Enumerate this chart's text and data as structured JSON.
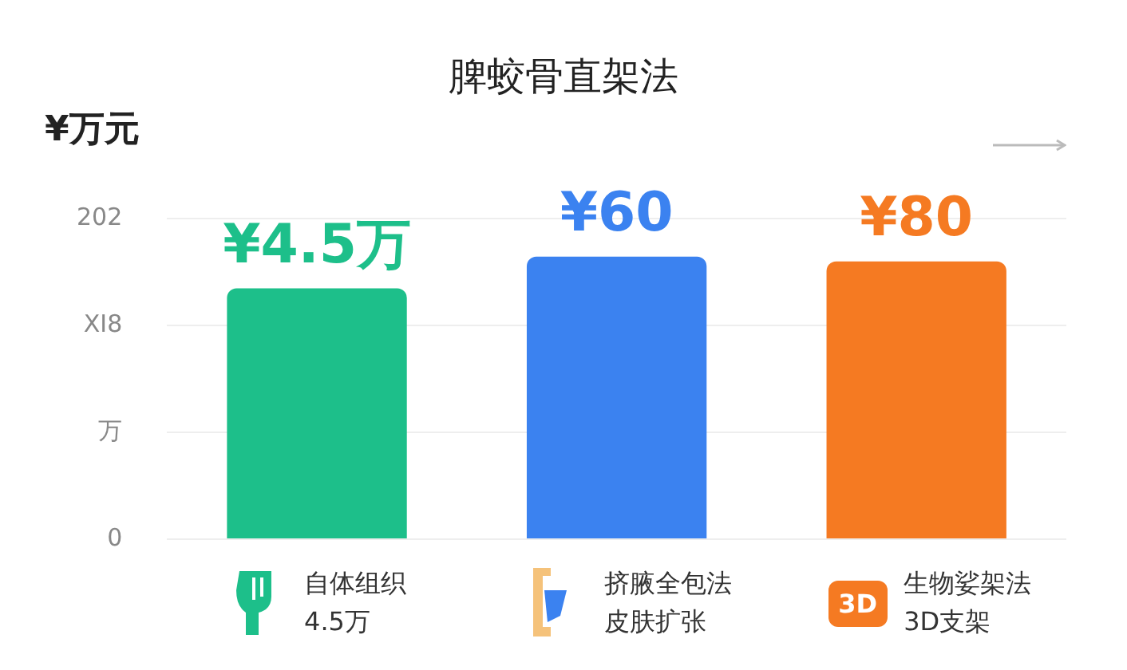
{
  "chart_data": {
    "type": "bar",
    "title": "脾蛟骨直架法",
    "ylabel": "¥万元",
    "categories": [
      "自体组织4.5万",
      "挤腋全包法皮肤扩张",
      "生物娑架法3D支架"
    ],
    "colors": [
      "#1dbf8a",
      "#3b82f0",
      "#f57a22"
    ],
    "values": [
      158,
      178,
      175
    ],
    "ylim": [
      0,
      202
    ],
    "yticks": [
      0,
      {
        "value": 67.3,
        "label": "万"
      },
      {
        "value": 134.7,
        "label": "XI8"
      },
      202
    ],
    "grid": "y",
    "legend": false,
    "annotations": [
      {
        "text": "¥4.5万",
        "x": "自体组织4.5万",
        "y": 158
      },
      {
        "text": "¥60",
        "x": "挤腋全包法皮肤扩张",
        "y": 178
      },
      {
        "text": "¥80",
        "x": "生物娑架法3D支架",
        "y": 175
      },
      "3D"
    ]
  }
}
